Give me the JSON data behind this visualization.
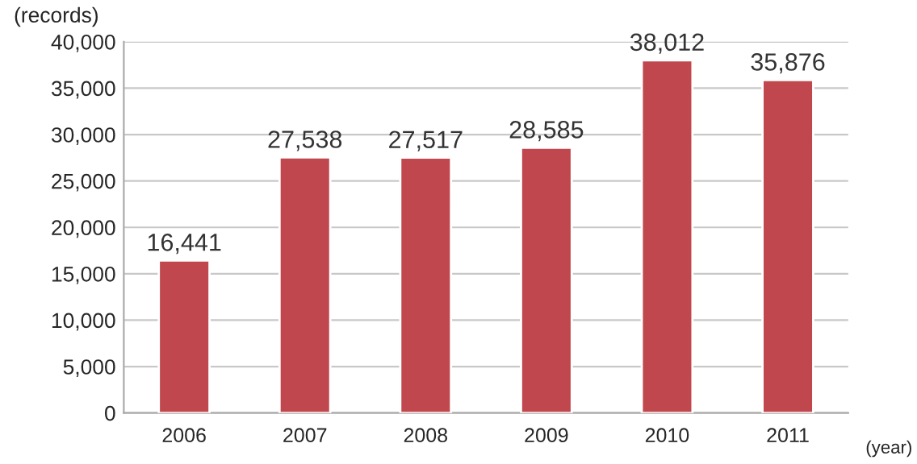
{
  "chart_data": {
    "type": "bar",
    "ylabel": "(records)",
    "xlabel": "(year)",
    "categories": [
      "2006",
      "2007",
      "2008",
      "2009",
      "2010",
      "2011"
    ],
    "values": [
      16441,
      27538,
      27517,
      28585,
      38012,
      35876
    ],
    "color": "#c0474d",
    "value_labels": [
      "16,441",
      "27,538",
      "27,517",
      "28,585",
      "38,012",
      "35,876"
    ],
    "ylim": [
      0,
      40000
    ],
    "yticks": [
      {
        "value": 0,
        "label": "0"
      },
      {
        "value": 5000,
        "label": "5,000"
      },
      {
        "value": 10000,
        "label": "10,000"
      },
      {
        "value": 15000,
        "label": "15,000"
      },
      {
        "value": 20000,
        "label": "20,000"
      },
      {
        "value": 25000,
        "label": "25,000"
      },
      {
        "value": 30000,
        "label": "30,000"
      },
      {
        "value": 35000,
        "label": "35,000"
      },
      {
        "value": 40000,
        "label": "40,000"
      }
    ],
    "grid": "y",
    "legend": false
  }
}
